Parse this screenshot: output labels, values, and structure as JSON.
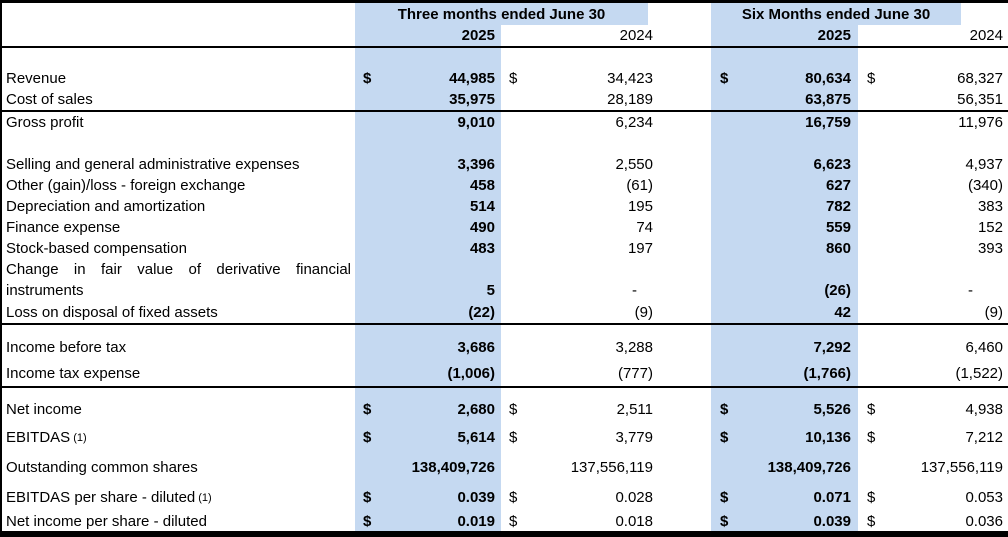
{
  "colors": {
    "highlight_blue": "#C5D9F1",
    "line_black": "#000000"
  },
  "symbols": {
    "dollar": "$"
  },
  "header": {
    "groups": [
      "Three months ended June 30",
      "Six Months ended June 30"
    ],
    "years": [
      "2025",
      "2024",
      "2025",
      "2024"
    ]
  },
  "body_rows": [
    {
      "h": 20,
      "blank": true
    },
    {
      "h": 21,
      "label": "Revenue",
      "dollar": true,
      "values": [
        "44,985",
        "34,423",
        "80,634",
        "68,327"
      ]
    },
    {
      "h": 21,
      "label": "Cost of sales",
      "values": [
        "35,975",
        "28,189",
        "63,875",
        "56,351"
      ],
      "rule_after": true
    },
    {
      "h": 21,
      "label": "Gross profit",
      "values": [
        "9,010",
        "6,234",
        "16,759",
        "11,976"
      ]
    },
    {
      "h": 21,
      "blank": true
    },
    {
      "h": 21,
      "label": "Selling and general administrative expenses",
      "values": [
        "3,396",
        "2,550",
        "6,623",
        "4,937"
      ]
    },
    {
      "h": 21,
      "label": "Other (gain)/loss - foreign exchange",
      "values": [
        "458",
        "(61)",
        "627",
        "(340)"
      ]
    },
    {
      "h": 21,
      "label": "Depreciation and amortization",
      "values": [
        "514",
        "195",
        "782",
        "383"
      ]
    },
    {
      "h": 21,
      "label": "Finance expense",
      "values": [
        "490",
        "74",
        "559",
        "152"
      ]
    },
    {
      "h": 21,
      "label": "Stock-based compensation",
      "values": [
        "483",
        "197",
        "860",
        "393"
      ]
    },
    {
      "h": 21,
      "label": "Change in fair value of derivative financial",
      "justify": true,
      "values": [
        "",
        "",
        "",
        ""
      ]
    },
    {
      "h": 21,
      "label": "instruments",
      "values": [
        "5",
        "-",
        "(26)",
        "-"
      ]
    },
    {
      "h": 22,
      "label": "Loss on disposal of fixed assets",
      "values": [
        "(22)",
        "(9)",
        "42",
        "(9)"
      ],
      "rule_after": true
    },
    {
      "h": 10,
      "blank": true
    },
    {
      "h": 25,
      "label": "Income before tax",
      "values": [
        "3,686",
        "3,288",
        "7,292",
        "6,460"
      ]
    },
    {
      "h": 26,
      "label": "Income tax expense",
      "values": [
        "(1,006)",
        "(777)",
        "(1,766)",
        "(1,522)"
      ],
      "rule_after": true
    },
    {
      "h": 9,
      "blank": true
    },
    {
      "h": 25,
      "label": "Net income",
      "dollar": true,
      "values": [
        "2,680",
        "2,511",
        "5,526",
        "4,938"
      ]
    },
    {
      "h": 30,
      "label": "EBITDAS",
      "sub": "(1)",
      "dollar": true,
      "values": [
        "5,614",
        "3,779",
        "10,136",
        "7,212"
      ]
    },
    {
      "h": 31,
      "label": "Outstanding common shares",
      "values": [
        "138,409,726",
        "137,556,119",
        "138,409,726",
        "137,556,119"
      ]
    },
    {
      "h": 28,
      "label": "EBITDAS per share - diluted",
      "sub": "(1)",
      "dollar": true,
      "values": [
        "0.039",
        "0.028",
        "0.071",
        "0.053"
      ]
    },
    {
      "h": 20,
      "label": "Net income per share - diluted",
      "dollar": true,
      "values": [
        "0.019",
        "0.018",
        "0.039",
        "0.036"
      ]
    }
  ]
}
